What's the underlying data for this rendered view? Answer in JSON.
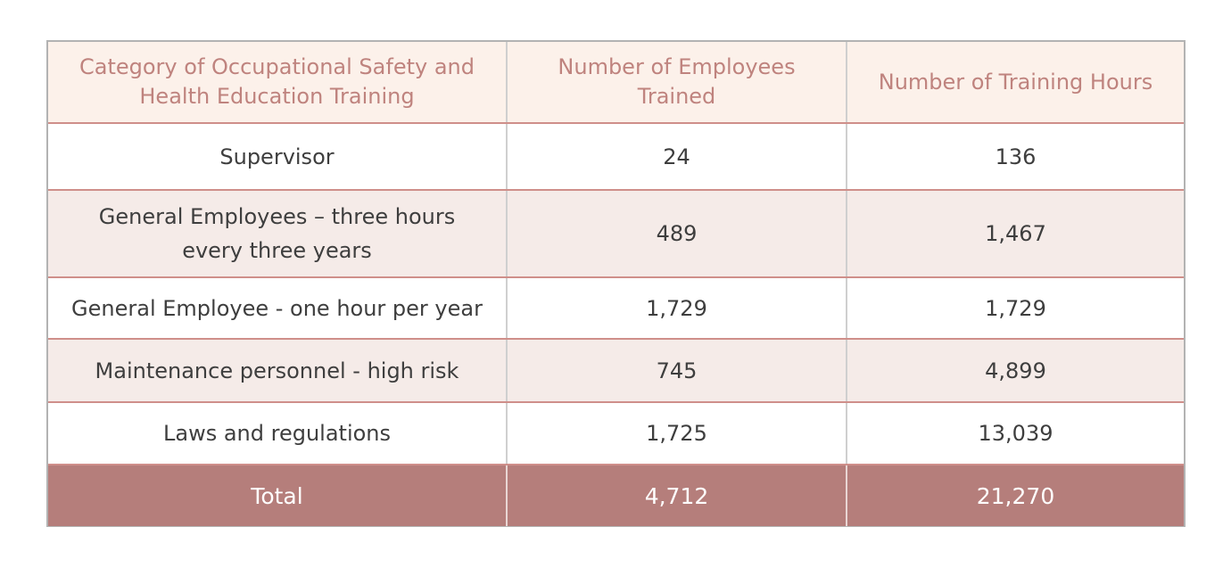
{
  "table": {
    "headers": [
      "Category of Occupational Safety and Health Education Training",
      "Number of Employees Trained",
      "Number of Training Hours"
    ],
    "rows": [
      [
        "Supervisor",
        "24",
        "136"
      ],
      [
        "General Employees – three hours every three years",
        "489",
        "1,467"
      ],
      [
        "General Employee - one hour per year",
        "1,729",
        "1,729"
      ],
      [
        "Maintenance personnel - high risk",
        "745",
        "4,899"
      ],
      [
        "Laws and regulations",
        "1,725",
        "13,039"
      ]
    ],
    "total": [
      "Total",
      "4,712",
      "21,270"
    ]
  },
  "colors": {
    "header_background": "#fcf1ea",
    "header_text": "#bf837e",
    "tinted_row": "#f5ebe8",
    "total_row": "#b57e7b",
    "row_divider": "#cf8f8a"
  }
}
